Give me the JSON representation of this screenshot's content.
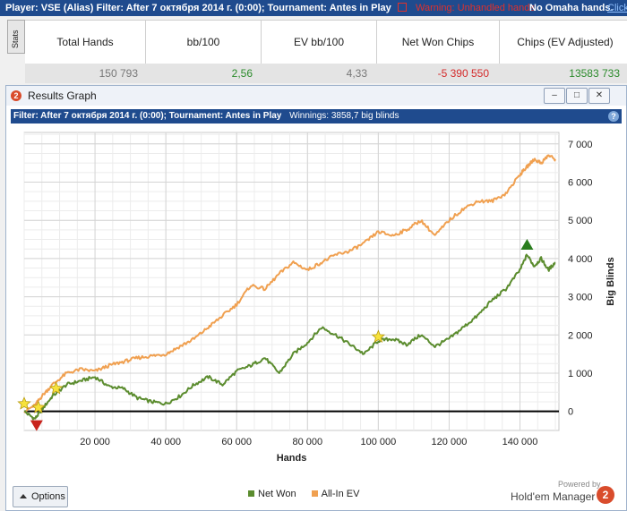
{
  "topbar": {
    "player": "Player: VSE (Alias)  Filter: After 7 октября 2014 г. (0:00); Tournament: Antes in Play",
    "warning": "Warning: Unhandled hands",
    "omaha": "No Omaha hands.",
    "link": "Click"
  },
  "stats_tab": "Stats",
  "stats": {
    "headers": [
      "Total Hands",
      "bb/100",
      "EV bb/100",
      "Net Won Chips",
      "Chips (EV Adjusted)"
    ],
    "values": [
      "150 793",
      "2,56",
      "4,33",
      "-5 390 550",
      "13583 733"
    ],
    "colors": [
      "#777777",
      "#2a8a2a",
      "#777777",
      "#d42a2a",
      "#2a8a2a"
    ]
  },
  "window": {
    "title": "Results Graph",
    "filter": "Filter: After 7 октября 2014 г. (0:00); Tournament: Antes in Play",
    "winnings": "Winnings: 3858,7 big blinds",
    "help": "?"
  },
  "options_label": "Options",
  "brand": {
    "powered": "Powered by",
    "name": "Hold'em Manager",
    "logo": "2"
  },
  "chart_data": {
    "type": "line",
    "xlabel": "Hands",
    "ylabel": "Big Blinds",
    "xlim": [
      0,
      151000
    ],
    "ylim": [
      -500,
      7300
    ],
    "x_ticks": [
      20000,
      40000,
      60000,
      80000,
      100000,
      120000,
      140000
    ],
    "x_tick_labels": [
      "20 000",
      "40 000",
      "60 000",
      "80 000",
      "100 000",
      "120 000",
      "140 000"
    ],
    "y_ticks": [
      0,
      1000,
      2000,
      3000,
      4000,
      5000,
      6000,
      7000
    ],
    "y_tick_labels": [
      "0",
      "1 000",
      "2 000",
      "3 000",
      "4 000",
      "5 000",
      "6 000",
      "7 000"
    ],
    "grid": true,
    "legend_position": "bottom",
    "series": [
      {
        "name": "Net Won",
        "color": "#5b8c2e",
        "x": [
          0,
          3000,
          5000,
          8000,
          12000,
          16000,
          20000,
          24000,
          28000,
          32000,
          36000,
          40000,
          44000,
          48000,
          52000,
          56000,
          60000,
          64000,
          68000,
          72000,
          76000,
          80000,
          84000,
          88000,
          92000,
          96000,
          100000,
          104000,
          108000,
          112000,
          116000,
          120000,
          124000,
          128000,
          132000,
          136000,
          140000,
          142000,
          144000,
          146000,
          148000,
          150000
        ],
        "y": [
          0,
          -200,
          50,
          400,
          700,
          800,
          900,
          650,
          600,
          350,
          250,
          200,
          400,
          700,
          900,
          700,
          1050,
          1200,
          1400,
          1000,
          1500,
          1800,
          2200,
          2000,
          1750,
          1500,
          1850,
          1900,
          1750,
          2000,
          1700,
          1900,
          2200,
          2500,
          2900,
          3200,
          3700,
          4100,
          3800,
          4000,
          3700,
          3900
        ]
      },
      {
        "name": "All-In EV",
        "color": "#f0a050",
        "x": [
          0,
          3000,
          5000,
          8000,
          12000,
          16000,
          20000,
          24000,
          28000,
          32000,
          36000,
          40000,
          44000,
          48000,
          52000,
          56000,
          60000,
          64000,
          68000,
          72000,
          76000,
          80000,
          84000,
          88000,
          92000,
          96000,
          100000,
          104000,
          108000,
          112000,
          116000,
          120000,
          124000,
          128000,
          132000,
          136000,
          140000,
          142000,
          144000,
          146000,
          148000,
          150000
        ],
        "y": [
          0,
          150,
          400,
          700,
          1000,
          1100,
          1050,
          1200,
          1300,
          1400,
          1450,
          1500,
          1700,
          1900,
          2200,
          2500,
          2800,
          3300,
          3200,
          3600,
          3900,
          3700,
          3900,
          4100,
          4200,
          4400,
          4700,
          4600,
          4750,
          5000,
          4600,
          5000,
          5300,
          5500,
          5500,
          5700,
          6200,
          6400,
          6600,
          6500,
          6700,
          6600
        ]
      }
    ],
    "markers": [
      {
        "type": "star",
        "x": 0,
        "y": 200
      },
      {
        "type": "star",
        "x": 4000,
        "y": 100
      },
      {
        "type": "star",
        "x": 9000,
        "y": 600
      },
      {
        "type": "star",
        "x": 100000,
        "y": 1950
      },
      {
        "type": "triangle-down",
        "x": 3500,
        "y": -350
      },
      {
        "type": "triangle-up",
        "x": 142000,
        "y": 4350
      }
    ]
  }
}
